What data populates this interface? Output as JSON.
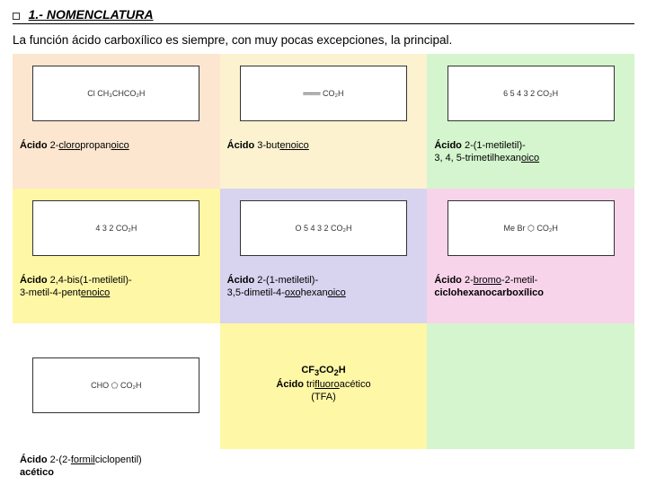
{
  "header": {
    "title": "1.- NOMENCLATURA",
    "subtitle": "La función ácido carboxílico es siempre, con muy pocas excepciones, la principal."
  },
  "cells": [
    {
      "bg_img": "#fce6cf",
      "bg_lbl": "#fce6cf",
      "struct": "Cl\nCH₃CHCO₂H",
      "label_html": "<b>Ácido</b> 2-<span class='u'>cloro</span>propan<span class='u'>oico</span>"
    },
    {
      "bg_img": "#fcf2d0",
      "bg_lbl": "#fcf2d0",
      "struct": "═══ CO₂H",
      "label_html": "<b>Ácido</b> 3-but<span class='u'>en</span><span class='u'>oico</span>"
    },
    {
      "bg_img": "#d4f5ce",
      "bg_lbl": "#d4f5ce",
      "struct": "6 5 4 3 2 CO₂H",
      "label_html": "<b>Ácido</b> 2-(1-metiletil)-<br>3, 4, 5-trimetilhexan<span class='u'>oico</span>"
    },
    {
      "bg_img": "#fef7a6",
      "bg_lbl": "#fef7a6",
      "struct": "4 3 2 CO₂H",
      "label_html": "<b>Ácido</b> 2,4-bis(1-metiletil)-<br>3-metil-4-pent<span class='u'>en</span><span class='u'>oico</span>"
    },
    {
      "bg_img": "#d8d3ef",
      "bg_lbl": "#d8d3ef",
      "struct": "O 5 4 3 2 CO₂H",
      "label_html": "<b>Ácido</b> 2-(1-metiletil)-<br>3,5-dimetil-4-<span class='u'>oxo</span>hexan<span class='u'>oico</span>"
    },
    {
      "bg_img": "#f7d4ea",
      "bg_lbl": "#f7d4ea",
      "struct": "Me Br ⬡ CO₂H",
      "label_html": "<b>Ácido</b> 2-<span class='u'>bromo</span>-2-metil-<br><b>ciclohexanocarboxílico</b>"
    },
    {
      "bg_img": "#ffffff",
      "bg_lbl": "#ffffff",
      "struct": "CHO ⬠ CO₂H",
      "label_html": "<b>Ácido</b> 2-(2-<span class='u'>formil</span>ciclopentil)<br><b>acético</b>"
    },
    {
      "bg_img": "#fef7a6",
      "bg_lbl": "#fef7a6",
      "struct": "",
      "label_html": "<b>CF<sub>3</sub>CO<sub>2</sub>H</b><br><b>Ácido</b> tri<span class='u'>fluoro</span>acético<br>(TFA)",
      "centered": true,
      "combined": true
    },
    {
      "bg_img": "#d4f5ce",
      "bg_lbl": "#d4f5ce",
      "struct": "",
      "label_html": "",
      "combined": true
    }
  ]
}
